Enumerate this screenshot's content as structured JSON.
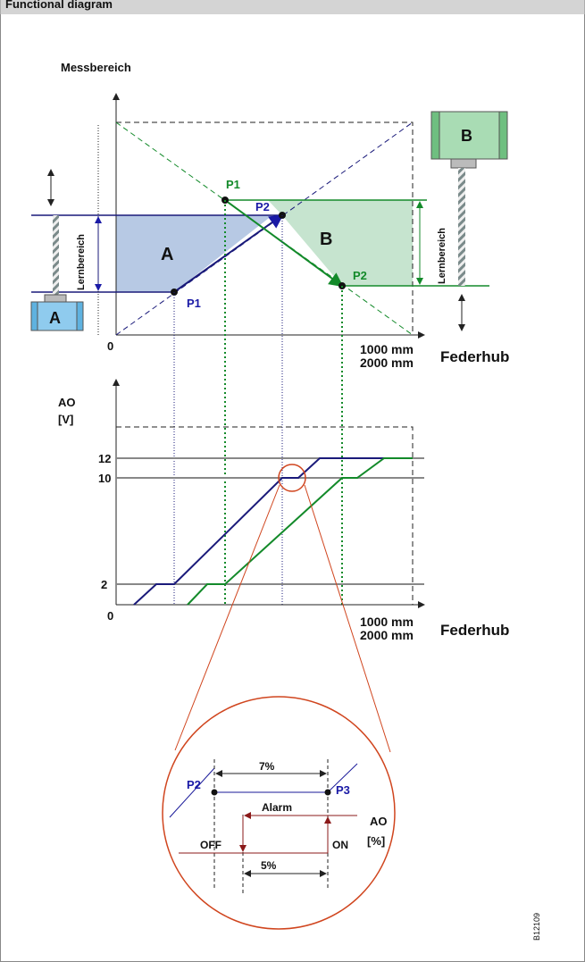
{
  "header": {
    "title": "Functional diagram"
  },
  "upper_chart": {
    "y_label": "Messbereich",
    "x_label": "Federhub",
    "x_scale": [
      "1000 mm",
      "2000 mm"
    ],
    "origin": "0",
    "range_label_left": "Lernbereich",
    "range_label_right": "Lernbereich",
    "device_a": "A",
    "device_b": "B",
    "area_a": "A",
    "area_b": "B",
    "points": {
      "a_p1": "P1",
      "a_p2": "P2",
      "b_p1": "P1",
      "b_p2": "P2"
    }
  },
  "lower_chart": {
    "y_label": [
      "AO",
      "[V]"
    ],
    "y_ticks": [
      "12",
      "10",
      "2"
    ],
    "origin": "0",
    "x_scale": [
      "1000 mm",
      "2000 mm"
    ],
    "x_label": "Federhub"
  },
  "detail": {
    "p2": "P2",
    "p3": "P3",
    "span_top": "7%",
    "alarm": "Alarm",
    "off": "OFF",
    "on": "ON",
    "ao": [
      "AO",
      "[%]"
    ],
    "span_bottom": "5%"
  },
  "figure_id": "B12109"
}
